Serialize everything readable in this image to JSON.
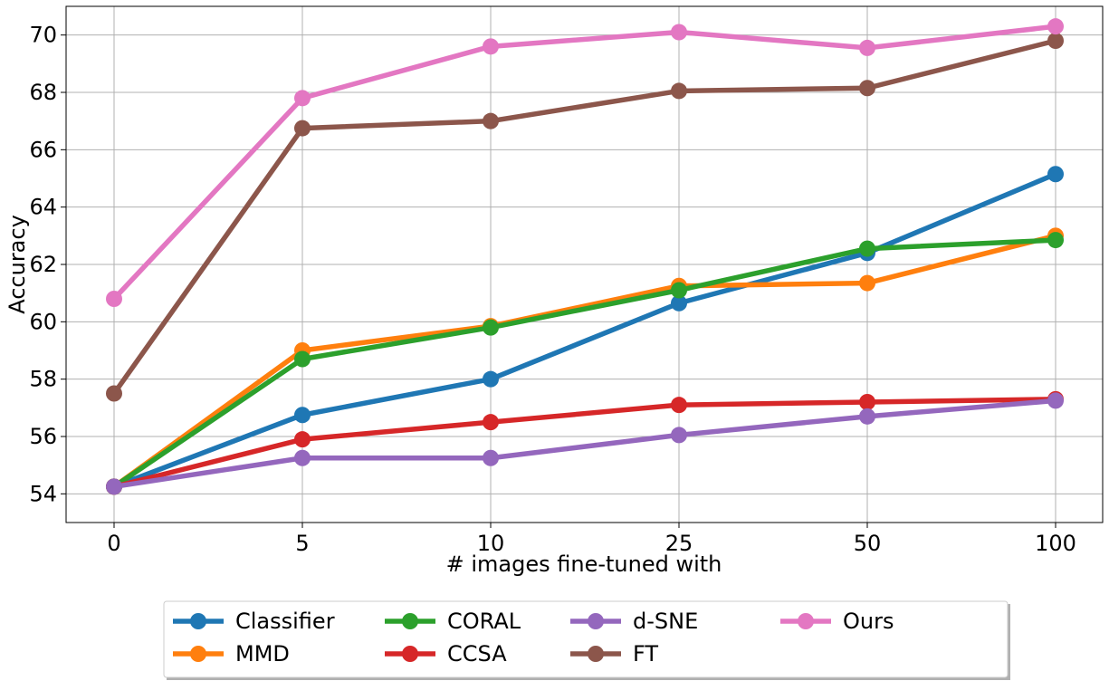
{
  "chart_data": {
    "type": "line",
    "title": "",
    "xlabel": "# images fine-tuned with",
    "ylabel": "Accuracy",
    "categories": [
      "0",
      "5",
      "10",
      "25",
      "50",
      "100"
    ],
    "ylim": [
      53,
      71
    ],
    "yticks": [
      54,
      56,
      58,
      60,
      62,
      64,
      66,
      68,
      70
    ],
    "grid": true,
    "legend": "below-center",
    "series": [
      {
        "name": "Classifier",
        "color": "#1f77b4",
        "values": [
          54.25,
          56.75,
          58.0,
          60.65,
          62.4,
          65.15
        ]
      },
      {
        "name": "MMD",
        "color": "#ff7f0e",
        "values": [
          54.25,
          59.0,
          59.85,
          61.25,
          61.35,
          63.0
        ]
      },
      {
        "name": "CORAL",
        "color": "#2ca02c",
        "values": [
          54.25,
          58.7,
          59.8,
          61.1,
          62.55,
          62.85
        ]
      },
      {
        "name": "CCSA",
        "color": "#d62728",
        "values": [
          54.25,
          55.9,
          56.5,
          57.1,
          57.2,
          57.3
        ]
      },
      {
        "name": "d-SNE",
        "color": "#9467bd",
        "values": [
          54.25,
          55.25,
          55.25,
          56.05,
          56.7,
          57.25
        ]
      },
      {
        "name": "FT",
        "color": "#8c564b",
        "values": [
          57.5,
          66.75,
          67.0,
          68.05,
          68.15,
          69.8
        ]
      },
      {
        "name": "Ours",
        "color": "#e377c2",
        "values": [
          60.8,
          67.8,
          69.6,
          70.1,
          69.55,
          70.3
        ]
      }
    ]
  }
}
